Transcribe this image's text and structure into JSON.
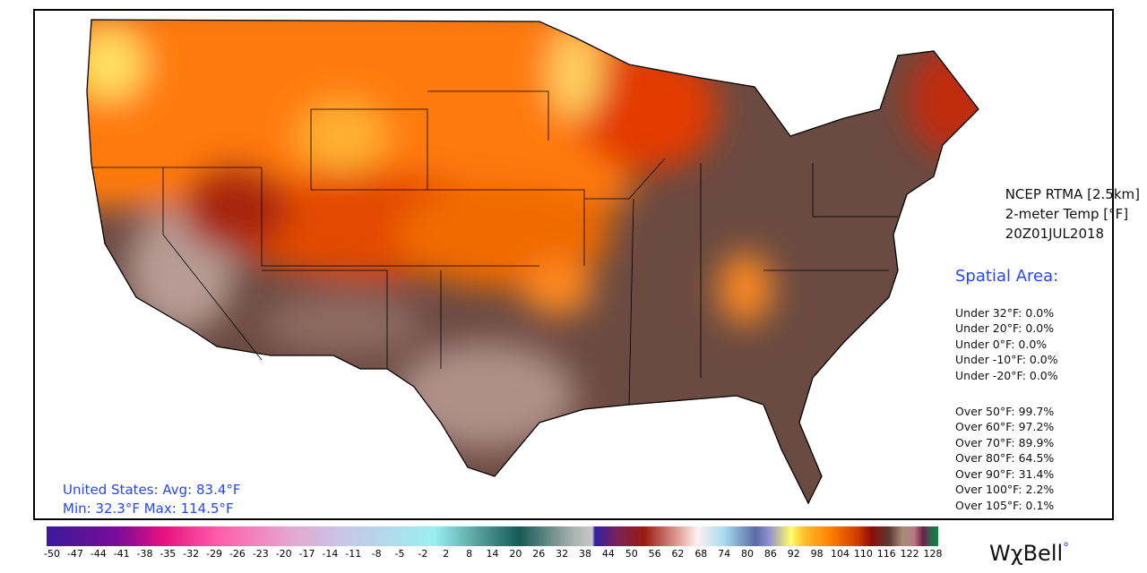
{
  "product": {
    "line1": "NCEP RTMA [2.5km]",
    "line2": "2-meter Temp [°F]",
    "line3": "20Z01JUL2018"
  },
  "spatial_area": {
    "title": "Spatial Area:",
    "under": [
      "Under 32°F: 0.0%",
      "Under 20°F: 0.0%",
      "Under 0°F: 0.0%",
      "Under -10°F: 0.0%",
      "Under -20°F: 0.0%"
    ],
    "over": [
      "Over 50°F: 99.7%",
      "Over 60°F: 97.2%",
      "Over 70°F: 89.9%",
      "Over 80°F: 64.5%",
      "Over 90°F: 31.4%",
      "Over 100°F: 2.2%",
      "Over 105°F: 0.1%"
    ]
  },
  "us_stats": {
    "line1": "United States: Avg:  83.4°F",
    "line2": "Min:  32.3°F Max: 114.5°F"
  },
  "colorbar": {
    "ticks": [
      "-50",
      "-47",
      "-44",
      "-41",
      "-38",
      "-35",
      "-32",
      "-29",
      "-26",
      "-23",
      "-20",
      "-17",
      "-14",
      "-11",
      "-8",
      "-5",
      "-2",
      "2",
      "8",
      "14",
      "20",
      "26",
      "32",
      "38",
      "44",
      "50",
      "56",
      "62",
      "68",
      "74",
      "80",
      "86",
      "92",
      "98",
      "104",
      "110",
      "116",
      "122",
      "128"
    ]
  },
  "logo": {
    "text": "WχBell",
    "mark": "°"
  },
  "colors": {
    "accent": "#2447ff",
    "hot": "#ff7a00",
    "hottest": "#6b4a42"
  }
}
